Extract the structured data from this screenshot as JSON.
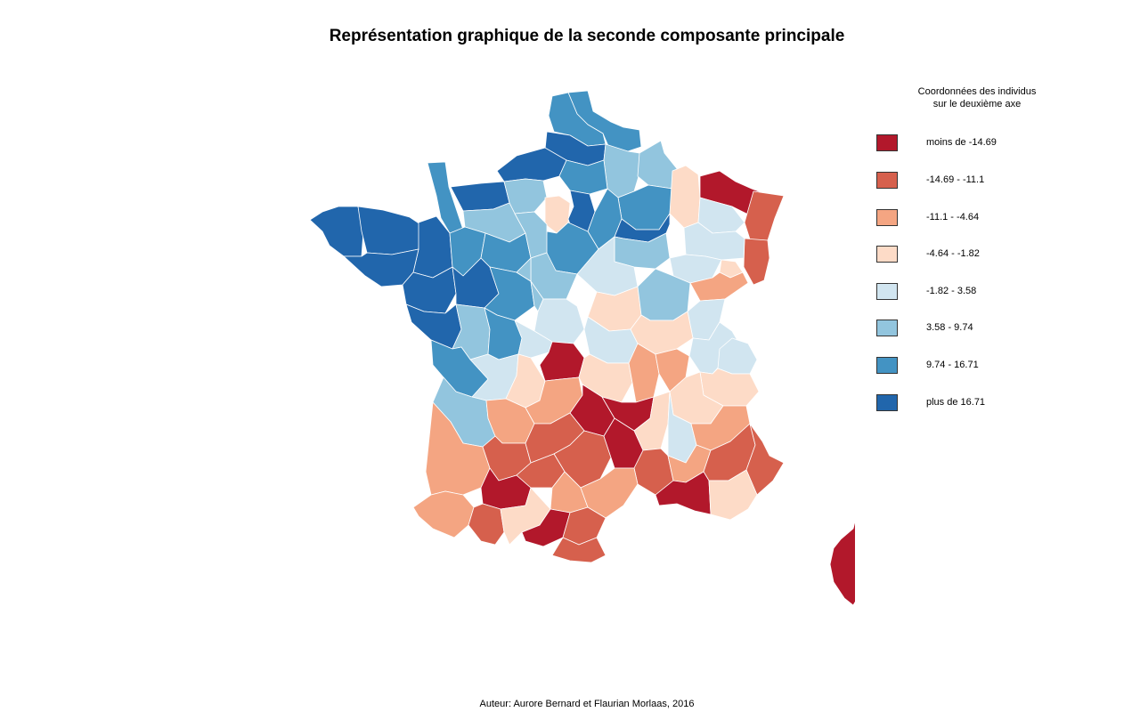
{
  "title": "Représentation graphique de la seconde composante principale",
  "legend": {
    "title_lines": [
      "Coordonnées des individus",
      "sur le deuxième axe"
    ],
    "classes": [
      {
        "label": "moins de -14.69",
        "color": "#b2182b"
      },
      {
        "label": "-14.69 - -11.1",
        "color": "#d6604d"
      },
      {
        "label": "-11.1 - -4.64",
        "color": "#f4a582"
      },
      {
        "label": "-4.64 - -1.82",
        "color": "#fddbc7"
      },
      {
        "label": "-1.82 - 3.58",
        "color": "#d1e5f0"
      },
      {
        "label": "3.58 - 9.74",
        "color": "#92c5de"
      },
      {
        "label": "9.74 - 16.71",
        "color": "#4393c3"
      },
      {
        "label": "plus de 16.71",
        "color": "#2166ac"
      }
    ]
  },
  "credit": "Auteur: Aurore Bernard et Flaurian Morlaas, 2016",
  "regions": [
    {
      "id": "nord",
      "cls": 6
    },
    {
      "id": "pas-de-calais",
      "cls": 6
    },
    {
      "id": "somme",
      "cls": 7
    },
    {
      "id": "aisne",
      "cls": 5
    },
    {
      "id": "ardennes",
      "cls": 5
    },
    {
      "id": "seine-maritime",
      "cls": 7
    },
    {
      "id": "oise",
      "cls": 6
    },
    {
      "id": "marne",
      "cls": 6
    },
    {
      "id": "meuse",
      "cls": 3
    },
    {
      "id": "moselle",
      "cls": 0
    },
    {
      "id": "bas-rhin",
      "cls": 1
    },
    {
      "id": "haut-rhin",
      "cls": 1
    },
    {
      "id": "meurthe-et-moselle",
      "cls": 4
    },
    {
      "id": "vosges",
      "cls": 4
    },
    {
      "id": "manche",
      "cls": 6
    },
    {
      "id": "calvados",
      "cls": 7
    },
    {
      "id": "eure",
      "cls": 5
    },
    {
      "id": "orne",
      "cls": 5
    },
    {
      "id": "val-d-oise",
      "cls": 3
    },
    {
      "id": "paris",
      "cls": 0
    },
    {
      "id": "yvelines",
      "cls": 7
    },
    {
      "id": "essonne",
      "cls": 6
    },
    {
      "id": "seine-et-marne",
      "cls": 6
    },
    {
      "id": "aube",
      "cls": 7
    },
    {
      "id": "haute-marne",
      "cls": 5
    },
    {
      "id": "finistere",
      "cls": 7
    },
    {
      "id": "cotes-d-armor",
      "cls": 7
    },
    {
      "id": "ille-et-vilaine",
      "cls": 7
    },
    {
      "id": "morbihan",
      "cls": 7
    },
    {
      "id": "loire-atlantique",
      "cls": 7
    },
    {
      "id": "mayenne",
      "cls": 6
    },
    {
      "id": "sarthe",
      "cls": 6
    },
    {
      "id": "eure-et-loir",
      "cls": 5
    },
    {
      "id": "loiret",
      "cls": 5
    },
    {
      "id": "yonne",
      "cls": 4
    },
    {
      "id": "haute-saone",
      "cls": 4
    },
    {
      "id": "territoire-de-belfort",
      "cls": 3
    },
    {
      "id": "doubs",
      "cls": 2
    },
    {
      "id": "maine-et-loire",
      "cls": 7
    },
    {
      "id": "vendee",
      "cls": 7
    },
    {
      "id": "indre-et-loire",
      "cls": 6
    },
    {
      "id": "loir-et-cher",
      "cls": 5
    },
    {
      "id": "cher",
      "cls": 4
    },
    {
      "id": "nievre",
      "cls": 3
    },
    {
      "id": "cote-d-or",
      "cls": 5
    },
    {
      "id": "jura",
      "cls": 4
    },
    {
      "id": "deux-sevres",
      "cls": 5
    },
    {
      "id": "vienne",
      "cls": 6
    },
    {
      "id": "indre",
      "cls": 4
    },
    {
      "id": "allier",
      "cls": 4
    },
    {
      "id": "saone-et-loire",
      "cls": 3
    },
    {
      "id": "ain",
      "cls": 4
    },
    {
      "id": "haute-savoie",
      "cls": 4
    },
    {
      "id": "charente-maritime",
      "cls": 6
    },
    {
      "id": "charente",
      "cls": 4
    },
    {
      "id": "haute-vienne",
      "cls": 3
    },
    {
      "id": "creuse",
      "cls": 0
    },
    {
      "id": "puy-de-dome",
      "cls": 3
    },
    {
      "id": "loire",
      "cls": 2
    },
    {
      "id": "rhone",
      "cls": 2
    },
    {
      "id": "savoie",
      "cls": 3
    },
    {
      "id": "isere",
      "cls": 3
    },
    {
      "id": "gironde",
      "cls": 5
    },
    {
      "id": "dordogne",
      "cls": 2
    },
    {
      "id": "correze",
      "cls": 2
    },
    {
      "id": "cantal",
      "cls": 0
    },
    {
      "id": "haute-loire",
      "cls": 0
    },
    {
      "id": "ardeche",
      "cls": 3
    },
    {
      "id": "drome",
      "cls": 4
    },
    {
      "id": "hautes-alpes",
      "cls": 2
    },
    {
      "id": "landes",
      "cls": 2
    },
    {
      "id": "lot-et-garonne",
      "cls": 1
    },
    {
      "id": "lot",
      "cls": 1
    },
    {
      "id": "aveyron",
      "cls": 1
    },
    {
      "id": "lozere",
      "cls": 0
    },
    {
      "id": "gard",
      "cls": 1
    },
    {
      "id": "vaucluse",
      "cls": 2
    },
    {
      "id": "alpes-de-haute-provence",
      "cls": 1
    },
    {
      "id": "alpes-maritimes",
      "cls": 1
    },
    {
      "id": "pyrenees-atlantiques",
      "cls": 2
    },
    {
      "id": "gers",
      "cls": 0
    },
    {
      "id": "tarn-et-garonne",
      "cls": 1
    },
    {
      "id": "tarn",
      "cls": 2
    },
    {
      "id": "herault",
      "cls": 2
    },
    {
      "id": "bouches-du-rhone",
      "cls": 0
    },
    {
      "id": "var",
      "cls": 3
    },
    {
      "id": "hautes-pyrenees",
      "cls": 1
    },
    {
      "id": "haute-garonne",
      "cls": 3
    },
    {
      "id": "ariege",
      "cls": 0
    },
    {
      "id": "aude",
      "cls": 1
    },
    {
      "id": "pyrenees-orientales",
      "cls": 1
    },
    {
      "id": "corse",
      "cls": 0
    }
  ]
}
